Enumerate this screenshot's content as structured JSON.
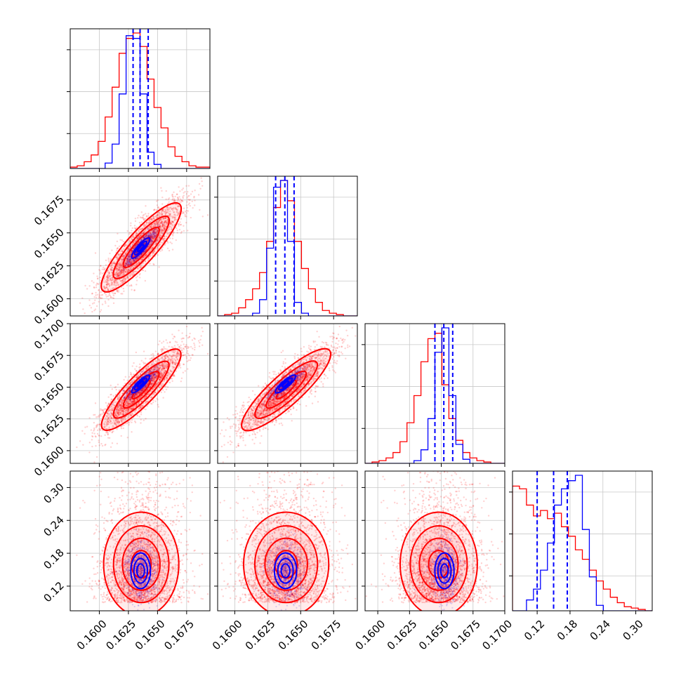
{
  "chart_data": {
    "type": "corner",
    "n_params": 4,
    "series": [
      {
        "name": "",
        "color": "#0000ff",
        "points": 900,
        "mean": [
          0.16355,
          0.16385,
          0.16525,
          0.148
        ],
        "sd": [
          0.00065,
          0.00065,
          0.00058,
          0.025
        ],
        "quantiles": [
          [
            0.1629,
            0.1635,
            0.1642
          ],
          [
            0.1631,
            0.1638,
            0.1645
          ],
          [
            0.1645,
            0.1652,
            0.1659
          ],
          [
            0.12,
            0.15,
            0.175
          ]
        ]
      },
      {
        "name": "",
        "color": "#ff0000",
        "points": 2600,
        "mean": [
          0.1636,
          0.1639,
          0.1648,
          0.165
        ],
        "sd": [
          0.0017,
          0.0017,
          0.0016,
          0.046
        ]
      }
    ],
    "hist_blue": [
      [
        0,
        0,
        0,
        0,
        0,
        0.04,
        0.18,
        0.55,
        0.98,
        0.96,
        0.55,
        0.12,
        0.03,
        0,
        0,
        0,
        0,
        0,
        0,
        0
      ],
      [
        0,
        0,
        0,
        0,
        0,
        0.02,
        0.12,
        0.5,
        0.95,
        1.0,
        0.55,
        0.1,
        0.02,
        0,
        0,
        0,
        0,
        0,
        0,
        0
      ],
      [
        0,
        0,
        0,
        0,
        0,
        0,
        0,
        0.02,
        0.1,
        0.33,
        0.82,
        1.0,
        0.5,
        0.14,
        0.03,
        0,
        0,
        0,
        0,
        0
      ],
      [
        0,
        0,
        0.08,
        0.16,
        0.3,
        0.5,
        0.78,
        0.9,
        0.96,
        1.0,
        0.6,
        0.25,
        0.04,
        0,
        0,
        0,
        0,
        0,
        0,
        0
      ]
    ],
    "hist_red": [
      [
        0.01,
        0.02,
        0.05,
        0.1,
        0.2,
        0.38,
        0.6,
        0.85,
        0.96,
        1.0,
        0.9,
        0.66,
        0.45,
        0.3,
        0.16,
        0.09,
        0.05,
        0.02,
        0.01,
        0.01
      ],
      [
        0,
        0.01,
        0.02,
        0.06,
        0.12,
        0.2,
        0.32,
        0.55,
        0.8,
        1.0,
        0.85,
        0.55,
        0.35,
        0.2,
        0.1,
        0.04,
        0.02,
        0.01,
        0,
        0
      ],
      [
        0,
        0.01,
        0.02,
        0.04,
        0.08,
        0.16,
        0.3,
        0.5,
        0.75,
        0.92,
        0.96,
        0.58,
        0.33,
        0.17,
        0.08,
        0.04,
        0.02,
        0.01,
        0,
        0
      ],
      [
        0.92,
        0.9,
        0.78,
        0.7,
        0.74,
        0.68,
        0.72,
        0.62,
        0.55,
        0.45,
        0.38,
        0.3,
        0.22,
        0.16,
        0.1,
        0.06,
        0.03,
        0.02,
        0.01,
        0
      ]
    ],
    "ranges": [
      [
        0.1575,
        0.1695
      ],
      [
        0.1587,
        0.1693
      ],
      [
        0.159,
        0.17
      ],
      [
        0.075,
        0.33
      ]
    ],
    "ticks": [
      [
        0.16,
        0.1625,
        0.165,
        0.1675
      ],
      [
        0.16,
        0.1625,
        0.165,
        0.1675
      ],
      [
        0.16,
        0.1625,
        0.165,
        0.1675,
        0.17
      ],
      [
        0.12,
        0.18,
        0.24,
        0.3
      ]
    ],
    "tick_labels": [
      [
        "0.1600",
        "0.1625",
        "0.1650",
        "0.1675"
      ],
      [
        "0.1600",
        "0.1625",
        "0.1650",
        "0.1675"
      ],
      [
        "0.1600",
        "0.1625",
        "0.1650",
        "0.1675",
        "0.1700"
      ],
      [
        "0.12",
        "0.18",
        "0.24",
        "0.30"
      ]
    ],
    "diag_ticks": [
      [
        0.25,
        0.55,
        0.85
      ],
      [
        0.25,
        0.55,
        0.85
      ],
      [
        0.25,
        0.55,
        0.85
      ],
      [
        0.25,
        0.55,
        0.85
      ]
    ],
    "grid": true,
    "colors": {
      "blue": "#0000ff",
      "red": "#ff0000",
      "frame": "#000000",
      "grid": "#c8c8c8"
    }
  }
}
